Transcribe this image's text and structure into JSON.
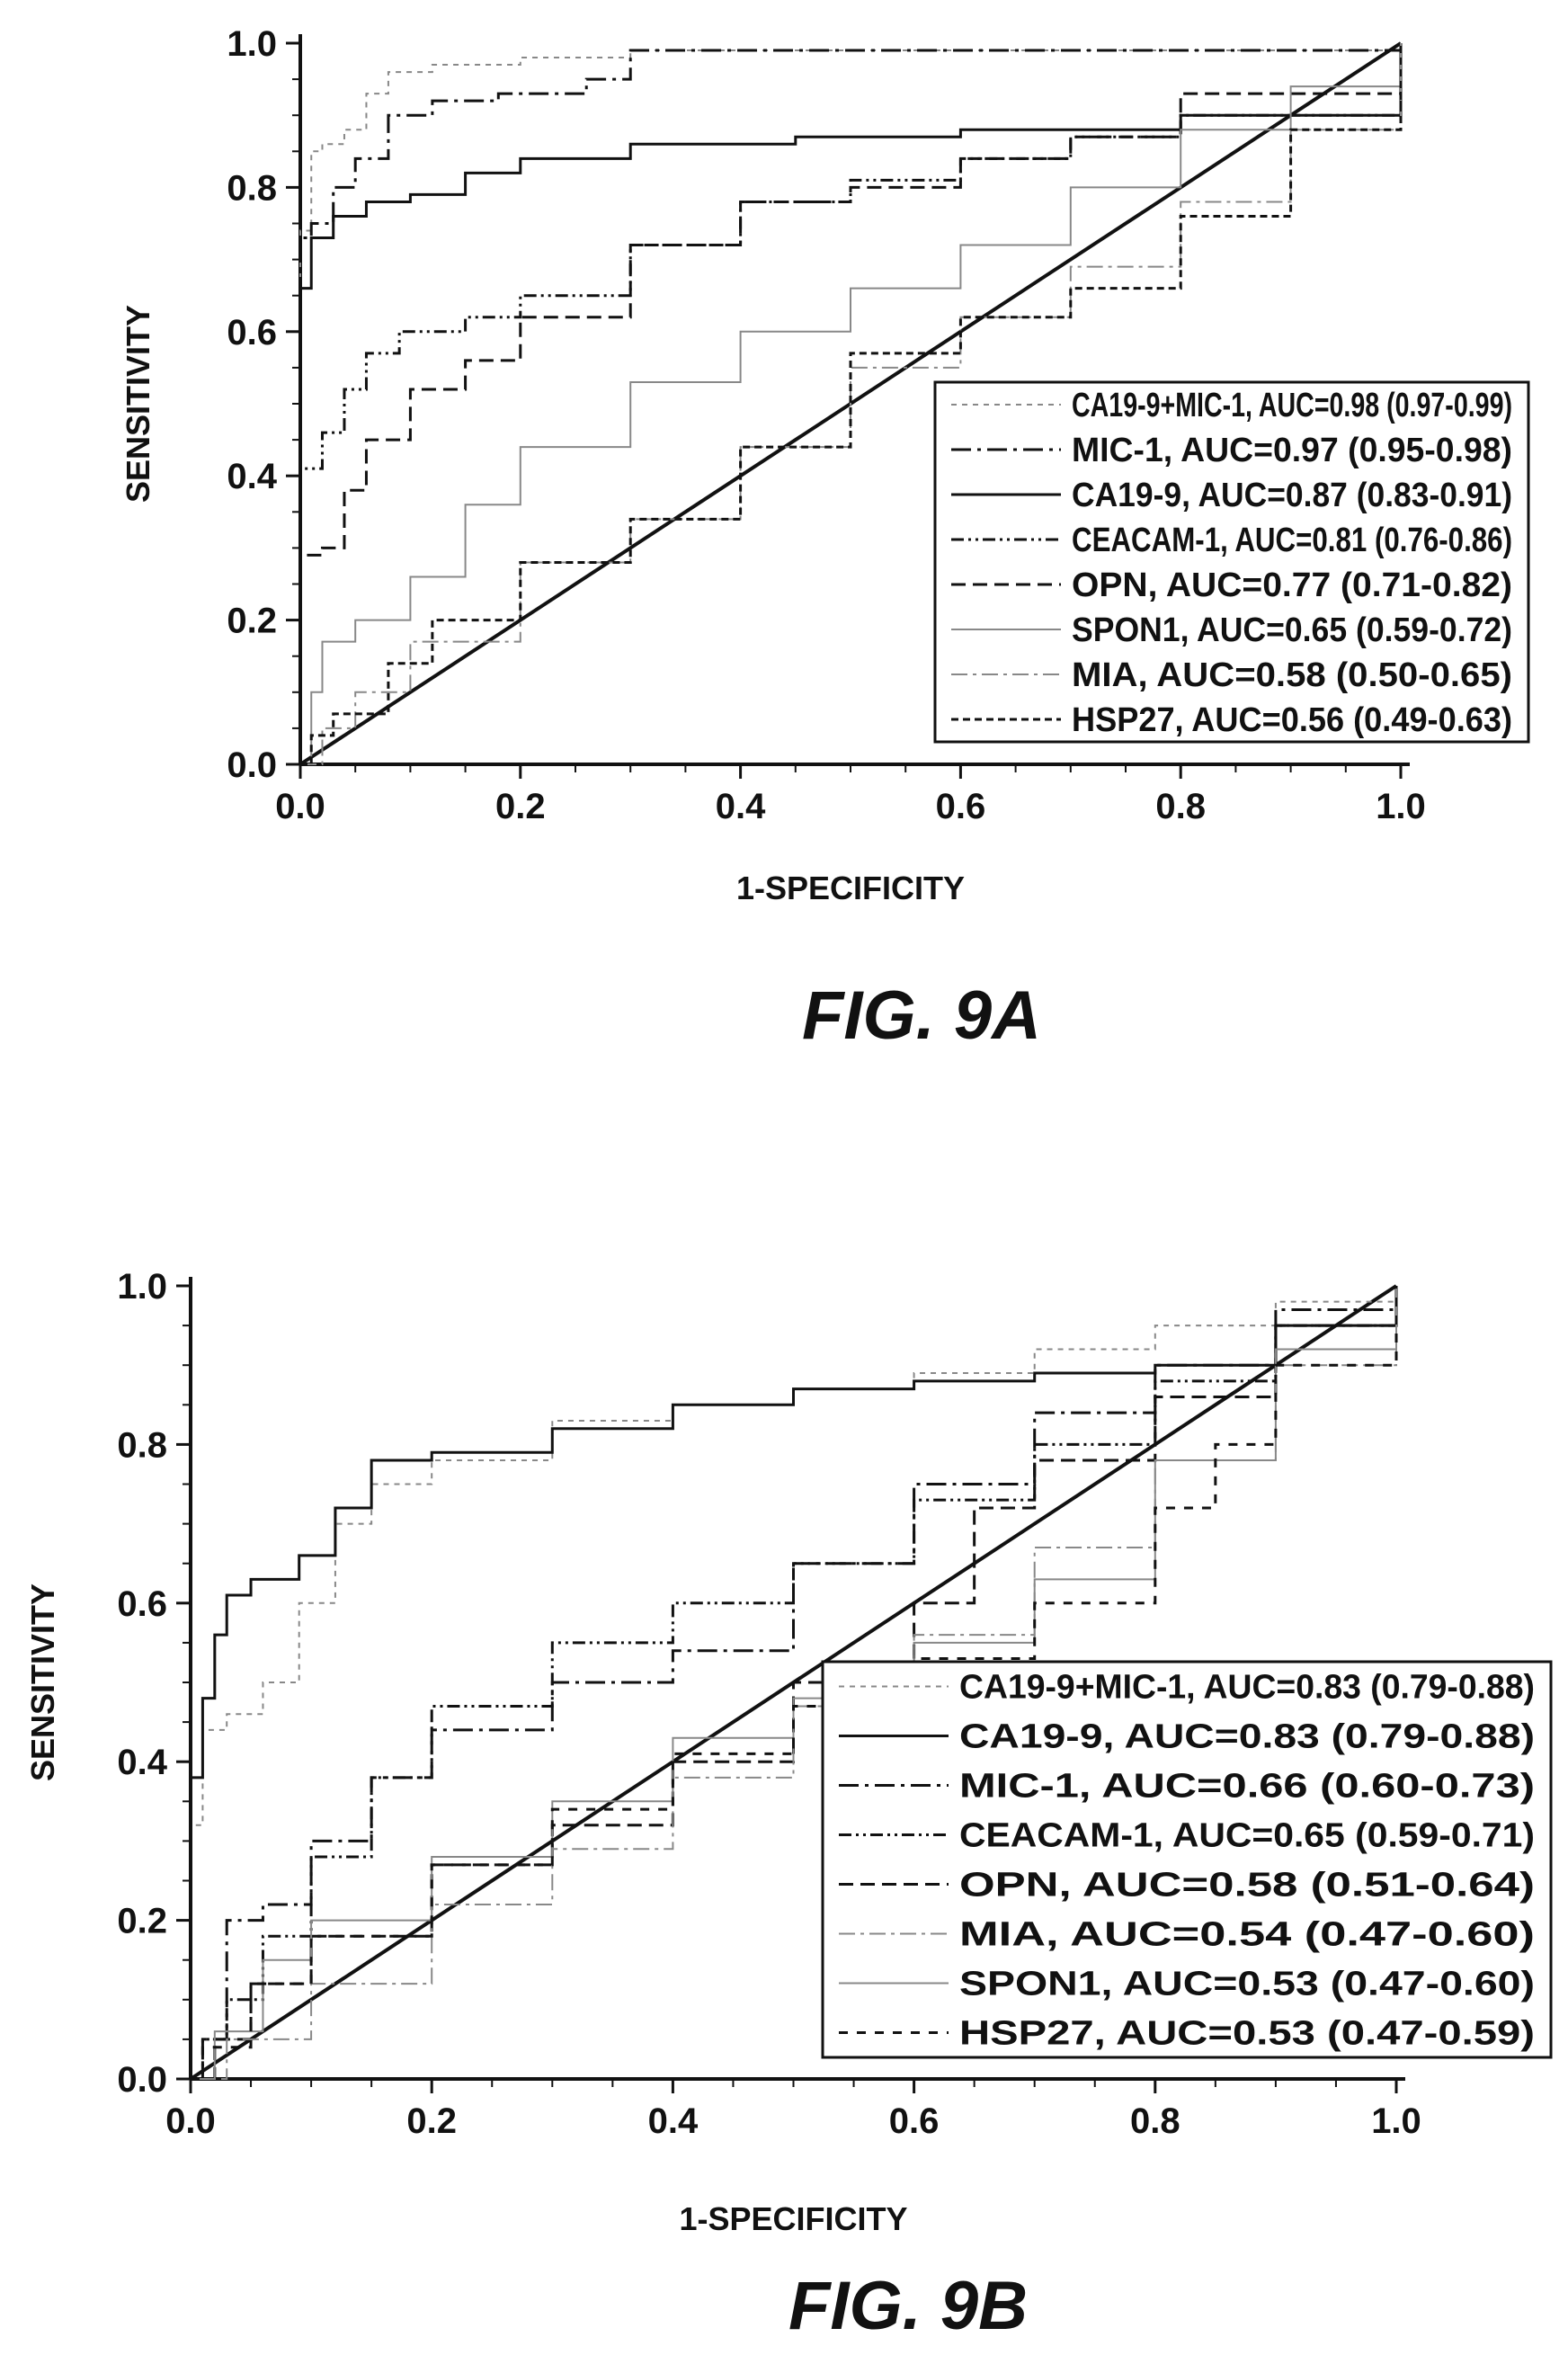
{
  "chart_data": [
    {
      "type": "line",
      "figure_label": "FIG. 9A",
      "xlabel": "1-SPECIFICITY",
      "ylabel": "SENSITIVITY",
      "xlim": [
        0,
        1.0
      ],
      "ylim": [
        0,
        1.0
      ],
      "xticks": [
        "0.0",
        "0.2",
        "0.4",
        "0.6",
        "0.8",
        "1.0"
      ],
      "yticks": [
        "0.0",
        "0.2",
        "0.4",
        "0.6",
        "0.8",
        "1.0"
      ],
      "legend_position": "bottom-right",
      "reference_line": [
        [
          0,
          0
        ],
        [
          1,
          1
        ]
      ],
      "series": [
        {
          "name": "CA19-9+MIC-1, AUC=0.98 (0.97-0.99)",
          "color": "#888888",
          "dash": "6,6",
          "width": 2,
          "points": [
            [
              0,
              0
            ],
            [
              0,
              0.74
            ],
            [
              0.01,
              0.85
            ],
            [
              0.02,
              0.86
            ],
            [
              0.04,
              0.88
            ],
            [
              0.06,
              0.93
            ],
            [
              0.08,
              0.96
            ],
            [
              0.12,
              0.97
            ],
            [
              0.2,
              0.98
            ],
            [
              0.3,
              0.99
            ],
            [
              0.5,
              0.99
            ],
            [
              0.8,
              0.99
            ],
            [
              1,
              1
            ]
          ]
        },
        {
          "name": "MIC-1, AUC=0.97 (0.95-0.98)",
          "color": "#111111",
          "dash": "22,7,4,7",
          "width": 3,
          "points": [
            [
              0,
              0
            ],
            [
              0,
              0.73
            ],
            [
              0.01,
              0.75
            ],
            [
              0.03,
              0.8
            ],
            [
              0.05,
              0.84
            ],
            [
              0.08,
              0.9
            ],
            [
              0.12,
              0.92
            ],
            [
              0.18,
              0.93
            ],
            [
              0.26,
              0.95
            ],
            [
              0.3,
              0.99
            ],
            [
              0.5,
              0.99
            ],
            [
              0.8,
              0.99
            ],
            [
              1,
              1
            ]
          ]
        },
        {
          "name": "CA19-9, AUC=0.87 (0.83-0.91)",
          "color": "#111111",
          "dash": "",
          "width": 3,
          "points": [
            [
              0,
              0
            ],
            [
              0,
              0.66
            ],
            [
              0.01,
              0.73
            ],
            [
              0.03,
              0.76
            ],
            [
              0.06,
              0.78
            ],
            [
              0.1,
              0.79
            ],
            [
              0.15,
              0.82
            ],
            [
              0.2,
              0.84
            ],
            [
              0.3,
              0.86
            ],
            [
              0.45,
              0.87
            ],
            [
              0.6,
              0.88
            ],
            [
              0.8,
              0.9
            ],
            [
              1,
              1
            ]
          ]
        },
        {
          "name": "CEACAM-1, AUC=0.81 (0.76-0.86)",
          "color": "#111111",
          "dash": "14,5,3,5,3,5",
          "width": 3,
          "points": [
            [
              0,
              0
            ],
            [
              0,
              0.41
            ],
            [
              0.02,
              0.46
            ],
            [
              0.04,
              0.52
            ],
            [
              0.06,
              0.57
            ],
            [
              0.09,
              0.6
            ],
            [
              0.15,
              0.62
            ],
            [
              0.2,
              0.65
            ],
            [
              0.3,
              0.72
            ],
            [
              0.4,
              0.78
            ],
            [
              0.5,
              0.81
            ],
            [
              0.6,
              0.84
            ],
            [
              0.7,
              0.87
            ],
            [
              0.8,
              0.9
            ],
            [
              1,
              1
            ]
          ]
        },
        {
          "name": "OPN, AUC=0.77 (0.71-0.82)",
          "color": "#111111",
          "dash": "16,8",
          "width": 3,
          "points": [
            [
              0,
              0
            ],
            [
              0,
              0.29
            ],
            [
              0.02,
              0.3
            ],
            [
              0.04,
              0.38
            ],
            [
              0.06,
              0.45
            ],
            [
              0.1,
              0.52
            ],
            [
              0.15,
              0.56
            ],
            [
              0.2,
              0.62
            ],
            [
              0.3,
              0.72
            ],
            [
              0.4,
              0.78
            ],
            [
              0.5,
              0.8
            ],
            [
              0.6,
              0.84
            ],
            [
              0.7,
              0.87
            ],
            [
              0.8,
              0.93
            ],
            [
              1,
              1
            ]
          ]
        },
        {
          "name": "SPON1, AUC=0.65 (0.59-0.72)",
          "color": "#888888",
          "dash": "",
          "width": 2,
          "points": [
            [
              0,
              0
            ],
            [
              0.01,
              0.1
            ],
            [
              0.02,
              0.17
            ],
            [
              0.05,
              0.2
            ],
            [
              0.1,
              0.26
            ],
            [
              0.15,
              0.36
            ],
            [
              0.2,
              0.44
            ],
            [
              0.3,
              0.53
            ],
            [
              0.4,
              0.6
            ],
            [
              0.5,
              0.66
            ],
            [
              0.6,
              0.72
            ],
            [
              0.7,
              0.8
            ],
            [
              0.8,
              0.88
            ],
            [
              0.9,
              0.94
            ],
            [
              1,
              1
            ]
          ]
        },
        {
          "name": "MIA, AUC=0.58 (0.50-0.65)",
          "color": "#888888",
          "dash": "18,6,4,6",
          "width": 2,
          "points": [
            [
              0,
              0
            ],
            [
              0.02,
              0.05
            ],
            [
              0.05,
              0.1
            ],
            [
              0.1,
              0.17
            ],
            [
              0.2,
              0.28
            ],
            [
              0.3,
              0.34
            ],
            [
              0.4,
              0.44
            ],
            [
              0.5,
              0.55
            ],
            [
              0.6,
              0.62
            ],
            [
              0.7,
              0.69
            ],
            [
              0.8,
              0.78
            ],
            [
              0.9,
              0.88
            ],
            [
              1,
              1
            ]
          ]
        },
        {
          "name": "HSP27, AUC=0.56 (0.49-0.63)",
          "color": "#111111",
          "dash": "8,5",
          "width": 3,
          "points": [
            [
              0,
              0
            ],
            [
              0.01,
              0.04
            ],
            [
              0.03,
              0.07
            ],
            [
              0.08,
              0.14
            ],
            [
              0.12,
              0.2
            ],
            [
              0.2,
              0.28
            ],
            [
              0.3,
              0.34
            ],
            [
              0.4,
              0.44
            ],
            [
              0.5,
              0.57
            ],
            [
              0.6,
              0.62
            ],
            [
              0.7,
              0.66
            ],
            [
              0.8,
              0.76
            ],
            [
              0.9,
              0.88
            ],
            [
              1,
              1
            ]
          ]
        }
      ]
    },
    {
      "type": "line",
      "figure_label": "FIG. 9B",
      "xlabel": "1-SPECIFICITY",
      "ylabel": "SENSITIVITY",
      "xlim": [
        0,
        1.0
      ],
      "ylim": [
        0,
        1.0
      ],
      "xticks": [
        "0.0",
        "0.2",
        "0.4",
        "0.6",
        "0.8",
        "1.0"
      ],
      "yticks": [
        "0.0",
        "0.2",
        "0.4",
        "0.6",
        "0.8",
        "1.0"
      ],
      "legend_position": "bottom-right",
      "reference_line": [
        [
          0,
          0
        ],
        [
          1,
          1
        ]
      ],
      "series": [
        {
          "name": "CA19-9+MIC-1, AUC=0.83 (0.79-0.88)",
          "color": "#888888",
          "dash": "6,6",
          "width": 2,
          "points": [
            [
              0,
              0
            ],
            [
              0,
              0.32
            ],
            [
              0.01,
              0.44
            ],
            [
              0.03,
              0.46
            ],
            [
              0.06,
              0.5
            ],
            [
              0.09,
              0.6
            ],
            [
              0.12,
              0.7
            ],
            [
              0.15,
              0.75
            ],
            [
              0.2,
              0.78
            ],
            [
              0.3,
              0.83
            ],
            [
              0.4,
              0.85
            ],
            [
              0.5,
              0.87
            ],
            [
              0.6,
              0.89
            ],
            [
              0.7,
              0.92
            ],
            [
              0.8,
              0.95
            ],
            [
              0.9,
              0.98
            ],
            [
              1,
              1
            ]
          ]
        },
        {
          "name": "CA19-9, AUC=0.83 (0.79-0.88)",
          "color": "#111111",
          "dash": "",
          "width": 3,
          "points": [
            [
              0,
              0
            ],
            [
              0,
              0.38
            ],
            [
              0.01,
              0.48
            ],
            [
              0.02,
              0.56
            ],
            [
              0.03,
              0.61
            ],
            [
              0.05,
              0.63
            ],
            [
              0.09,
              0.66
            ],
            [
              0.12,
              0.72
            ],
            [
              0.15,
              0.78
            ],
            [
              0.2,
              0.79
            ],
            [
              0.3,
              0.82
            ],
            [
              0.4,
              0.85
            ],
            [
              0.5,
              0.87
            ],
            [
              0.6,
              0.88
            ],
            [
              0.7,
              0.89
            ],
            [
              0.8,
              0.9
            ],
            [
              0.9,
              0.95
            ],
            [
              1,
              1
            ]
          ]
        },
        {
          "name": "MIC-1, AUC=0.66 (0.60-0.73)",
          "color": "#111111",
          "dash": "22,7,4,7",
          "width": 3,
          "points": [
            [
              0,
              0
            ],
            [
              0.01,
              0.05
            ],
            [
              0.03,
              0.2
            ],
            [
              0.06,
              0.22
            ],
            [
              0.1,
              0.3
            ],
            [
              0.15,
              0.38
            ],
            [
              0.2,
              0.44
            ],
            [
              0.3,
              0.5
            ],
            [
              0.4,
              0.54
            ],
            [
              0.5,
              0.65
            ],
            [
              0.6,
              0.75
            ],
            [
              0.7,
              0.84
            ],
            [
              0.8,
              0.9
            ],
            [
              0.9,
              0.97
            ],
            [
              1,
              1
            ]
          ]
        },
        {
          "name": "CEACAM-1, AUC=0.65 (0.59-0.71)",
          "color": "#111111",
          "dash": "14,5,3,5,3,5",
          "width": 3,
          "points": [
            [
              0,
              0
            ],
            [
              0.01,
              0.05
            ],
            [
              0.03,
              0.1
            ],
            [
              0.06,
              0.18
            ],
            [
              0.1,
              0.28
            ],
            [
              0.15,
              0.38
            ],
            [
              0.2,
              0.47
            ],
            [
              0.3,
              0.55
            ],
            [
              0.4,
              0.6
            ],
            [
              0.5,
              0.65
            ],
            [
              0.6,
              0.73
            ],
            [
              0.7,
              0.8
            ],
            [
              0.8,
              0.88
            ],
            [
              0.9,
              0.95
            ],
            [
              1,
              1
            ]
          ]
        },
        {
          "name": "OPN, AUC=0.58 (0.51-0.64)",
          "color": "#111111",
          "dash": "16,8",
          "width": 3,
          "points": [
            [
              0,
              0
            ],
            [
              0.02,
              0.05
            ],
            [
              0.05,
              0.12
            ],
            [
              0.1,
              0.18
            ],
            [
              0.2,
              0.27
            ],
            [
              0.3,
              0.32
            ],
            [
              0.4,
              0.4
            ],
            [
              0.5,
              0.5
            ],
            [
              0.6,
              0.6
            ],
            [
              0.65,
              0.72
            ],
            [
              0.7,
              0.78
            ],
            [
              0.8,
              0.86
            ],
            [
              0.9,
              0.95
            ],
            [
              1,
              1
            ]
          ]
        },
        {
          "name": "MIA, AUC=0.54 (0.47-0.60)",
          "color": "#888888",
          "dash": "18,6,4,6",
          "width": 2,
          "points": [
            [
              0,
              0
            ],
            [
              0.03,
              0.05
            ],
            [
              0.1,
              0.12
            ],
            [
              0.2,
              0.22
            ],
            [
              0.3,
              0.29
            ],
            [
              0.4,
              0.38
            ],
            [
              0.5,
              0.47
            ],
            [
              0.6,
              0.56
            ],
            [
              0.7,
              0.67
            ],
            [
              0.8,
              0.78
            ],
            [
              0.9,
              0.9
            ],
            [
              1,
              1
            ]
          ]
        },
        {
          "name": "SPON1, AUC=0.53 (0.47-0.60)",
          "color": "#888888",
          "dash": "",
          "width": 2,
          "points": [
            [
              0,
              0
            ],
            [
              0.02,
              0.06
            ],
            [
              0.06,
              0.15
            ],
            [
              0.1,
              0.2
            ],
            [
              0.2,
              0.28
            ],
            [
              0.3,
              0.35
            ],
            [
              0.4,
              0.43
            ],
            [
              0.5,
              0.48
            ],
            [
              0.6,
              0.55
            ],
            [
              0.7,
              0.63
            ],
            [
              0.8,
              0.78
            ],
            [
              0.9,
              0.92
            ],
            [
              1,
              1
            ]
          ]
        },
        {
          "name": "HSP27, AUC=0.53 (0.47-0.59)",
          "color": "#111111",
          "dash": "10,10",
          "width": 3,
          "points": [
            [
              0,
              0
            ],
            [
              0.01,
              0.04
            ],
            [
              0.05,
              0.12
            ],
            [
              0.1,
              0.18
            ],
            [
              0.2,
              0.27
            ],
            [
              0.3,
              0.34
            ],
            [
              0.4,
              0.41
            ],
            [
              0.5,
              0.47
            ],
            [
              0.6,
              0.53
            ],
            [
              0.7,
              0.6
            ],
            [
              0.8,
              0.72
            ],
            [
              0.85,
              0.8
            ],
            [
              0.9,
              0.9
            ],
            [
              1,
              1
            ]
          ]
        }
      ]
    }
  ]
}
